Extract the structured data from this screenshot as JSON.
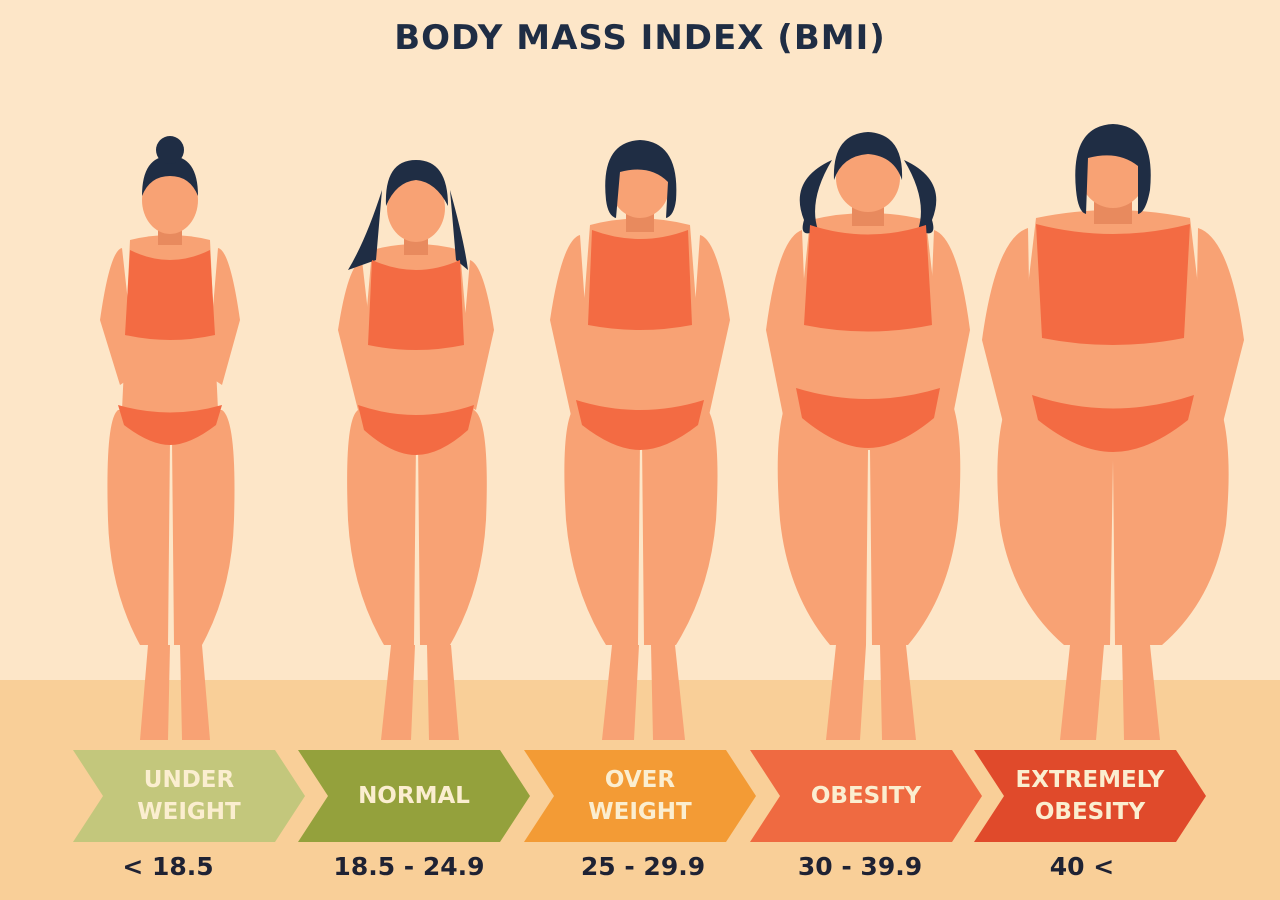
{
  "title": "BODY MASS INDEX (BMI)",
  "colors": {
    "background": "#fde6c8",
    "floor": "#f9cf98",
    "skin": "#f8a274",
    "skin_shade": "#e88a5e",
    "bikini": "#f36b43",
    "hair": "#1f2d44"
  },
  "categories": [
    {
      "label_line1": "UNDER",
      "label_line2": "WEIGHT",
      "range": "< 18.5",
      "color": "#c3c77c"
    },
    {
      "label_line1": "NORMAL",
      "label_line2": "",
      "range": "18.5 - 24.9",
      "color": "#94a13c"
    },
    {
      "label_line1": "OVER",
      "label_line2": "WEIGHT",
      "range": "25 - 29.9",
      "color": "#f39b35"
    },
    {
      "label_line1": "OBESITY",
      "label_line2": "",
      "range": "30 - 39.9",
      "color": "#ef6a41"
    },
    {
      "label_line1": "EXTREMELY",
      "label_line2": "OBESITY",
      "range": "40 <",
      "color": "#e04a2b"
    }
  ]
}
